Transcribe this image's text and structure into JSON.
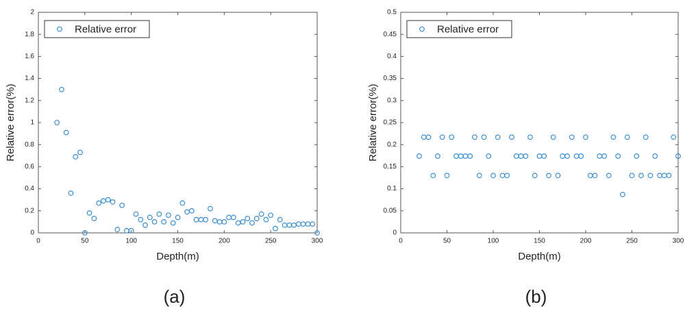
{
  "chart_data": [
    {
      "type": "scatter",
      "caption": "(a)",
      "xlabel": "Depth(m)",
      "ylabel": "Relative error(%)",
      "legend": "upper left",
      "xlim": [
        0,
        300
      ],
      "xticks": [
        0,
        50,
        100,
        150,
        200,
        250,
        300
      ],
      "ylim": [
        0,
        2
      ],
      "yticks": [
        0,
        0.2,
        0.4,
        0.6,
        0.8,
        1,
        1.2,
        1.4,
        1.6,
        1.8,
        2
      ],
      "x": [
        20,
        25,
        30,
        35,
        40,
        45,
        50,
        55,
        60,
        65,
        70,
        75,
        80,
        85,
        90,
        95,
        100,
        105,
        110,
        115,
        120,
        125,
        130,
        135,
        140,
        145,
        150,
        155,
        160,
        165,
        170,
        175,
        180,
        185,
        190,
        195,
        200,
        205,
        210,
        215,
        220,
        225,
        230,
        235,
        240,
        245,
        250,
        255,
        260,
        265,
        270,
        275,
        280,
        285,
        290,
        295,
        300
      ],
      "series": [
        {
          "name": "Relative error",
          "color": "#3a8fcf",
          "values": [
            1.0,
            1.3,
            0.91,
            0.36,
            0.69,
            0.73,
            0,
            0.18,
            0.13,
            0.27,
            0.29,
            0.3,
            0.28,
            0.03,
            0.25,
            0.02,
            0.02,
            0.17,
            0.12,
            0.07,
            0.14,
            0.1,
            0.17,
            0.1,
            0.16,
            0.09,
            0.14,
            0.27,
            0.19,
            0.2,
            0.12,
            0.12,
            0.12,
            0.22,
            0.11,
            0.1,
            0.1,
            0.14,
            0.14,
            0.09,
            0.1,
            0.13,
            0.09,
            0.13,
            0.17,
            0.12,
            0.16,
            0.04,
            0.12,
            0.07,
            0.07,
            0.07,
            0.08,
            0.08,
            0.08,
            0.08,
            0
          ]
        }
      ]
    },
    {
      "type": "scatter",
      "caption": "(b)",
      "xlabel": "Depth(m)",
      "ylabel": "Relative error(%)",
      "legend": "upper left",
      "xlim": [
        0,
        300
      ],
      "xticks": [
        0,
        50,
        100,
        150,
        200,
        250,
        300
      ],
      "ylim": [
        0,
        0.5
      ],
      "yticks": [
        0,
        0.05,
        0.1,
        0.15,
        0.2,
        0.25,
        0.3,
        0.35,
        0.4,
        0.45,
        0.5
      ],
      "x": [
        20,
        25,
        30,
        35,
        40,
        45,
        50,
        55,
        60,
        65,
        70,
        75,
        80,
        85,
        90,
        95,
        100,
        105,
        110,
        115,
        120,
        125,
        130,
        135,
        140,
        145,
        150,
        155,
        160,
        165,
        170,
        175,
        180,
        185,
        190,
        195,
        200,
        205,
        210,
        215,
        220,
        225,
        230,
        235,
        240,
        245,
        250,
        255,
        260,
        265,
        270,
        275,
        280,
        285,
        290,
        295,
        300
      ],
      "series": [
        {
          "name": "Relative error",
          "color": "#3a8fcf",
          "values": [
            0.174,
            0.217,
            0.217,
            0.13,
            0.174,
            0.217,
            0.13,
            0.217,
            0.174,
            0.174,
            0.174,
            0.174,
            0.217,
            0.13,
            0.217,
            0.174,
            0.13,
            0.217,
            0.13,
            0.13,
            0.217,
            0.174,
            0.174,
            0.174,
            0.217,
            0.13,
            0.174,
            0.174,
            0.13,
            0.217,
            0.13,
            0.174,
            0.174,
            0.217,
            0.174,
            0.174,
            0.217,
            0.13,
            0.13,
            0.174,
            0.174,
            0.13,
            0.217,
            0.174,
            0.087,
            0.217,
            0.13,
            0.174,
            0.13,
            0.217,
            0.13,
            0.174,
            0.13,
            0.13,
            0.13,
            0.217,
            0.174
          ]
        }
      ]
    }
  ]
}
